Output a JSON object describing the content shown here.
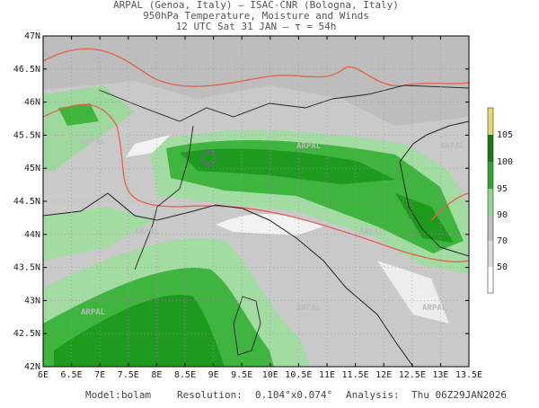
{
  "header": {
    "line1": "ARPAL (Genoa, Italy)  –  ISAC-CNR (Bologna, Italy)",
    "line2": "950hPa Temperature, Moisture and Winds",
    "line3": "12 UTC Sat 31 JAN  –  τ = 54h"
  },
  "map": {
    "lat_labels": [
      "42N",
      "42.5N",
      "43N",
      "43.5N",
      "44N",
      "44.5N",
      "45N",
      "45.5N",
      "46N",
      "46.5N",
      "47N"
    ],
    "lon_labels": [
      "6E",
      "6.5E",
      "7E",
      "7.5E",
      "8E",
      "8.5E",
      "9E",
      "9.5E",
      "10E",
      "10.5E",
      "11E",
      "11.5E",
      "12E",
      "12.5E",
      "13E",
      "13.5E"
    ],
    "watermark": "ARPAL"
  },
  "colorbar": {
    "labels": [
      "105",
      "100",
      "95",
      "90",
      "70",
      "50"
    ]
  },
  "footer": {
    "model_label": "Model:",
    "model": "bolam",
    "resolution_label": "Resolution:",
    "resolution": "0.104°x0.074°",
    "analysis_label": "Analysis:",
    "analysis": "Thu 06Z29JAN2026"
  }
}
